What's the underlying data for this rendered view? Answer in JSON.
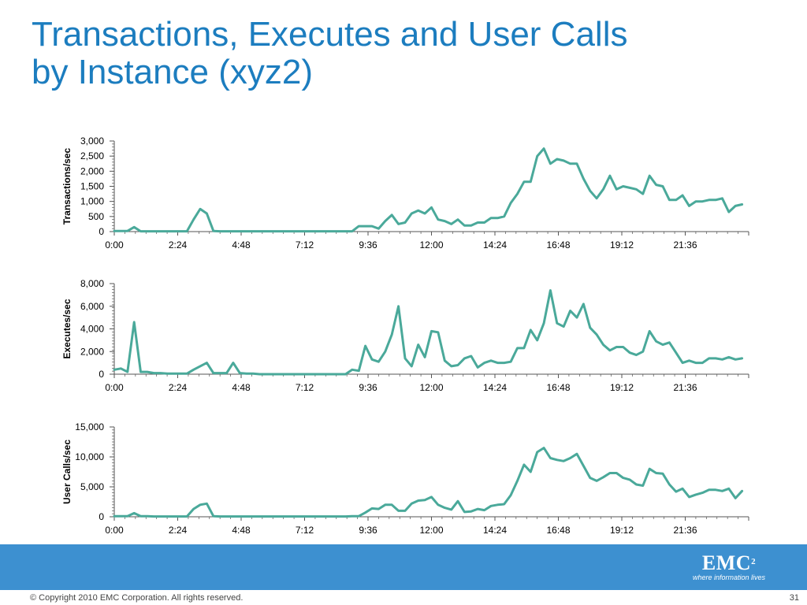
{
  "title": {
    "line1": "Transactions, Executes and User Calls",
    "line2": "by Instance (xyz2)"
  },
  "footer": {
    "copyright": "© Copyright 2010  EMC Corporation.  All rights reserved.",
    "page": "31"
  },
  "logo": {
    "name": "EMC",
    "sup": "2",
    "tagline": "where information lives"
  },
  "colors": {
    "title": "#1c7dbf",
    "line": "#4aa99a",
    "band": "#3d90d0"
  },
  "chart_data": [
    {
      "type": "line",
      "ylabel": "Transactions/sec",
      "ylim": [
        0,
        3000
      ],
      "yticks": [
        "0",
        "500",
        "1,000",
        "1,500",
        "2,000",
        "2,500",
        "3,000"
      ],
      "xticks": [
        "0:00",
        "2:24",
        "4:48",
        "7:12",
        "9:36",
        "12:00",
        "14:24",
        "16:48",
        "19:12",
        "21:36"
      ],
      "xlim": [
        0,
        24
      ],
      "legend": "none",
      "series": [
        {
          "x": [
            0,
            0.25,
            0.5,
            0.75,
            1.0,
            1.25,
            1.5,
            1.75,
            2.0,
            2.25,
            2.5,
            2.75,
            3.0,
            3.25,
            3.5,
            3.75,
            4.0,
            4.25,
            4.5,
            4.75,
            5.0,
            5.25,
            5.5,
            5.75,
            6.0,
            6.25,
            6.5,
            6.75,
            7.0,
            7.25,
            7.5,
            7.75,
            8.0,
            8.25,
            8.5,
            8.75,
            9.0,
            9.25,
            9.5,
            9.75,
            10.0,
            10.25,
            10.5,
            10.75,
            11.0,
            11.25,
            11.5,
            11.75,
            12.0,
            12.25,
            12.5,
            12.75,
            13.0,
            13.25,
            13.5,
            13.75,
            14.0,
            14.25,
            14.5,
            14.75,
            15.0,
            15.25,
            15.5,
            15.75,
            16.0,
            16.25,
            16.5,
            16.75,
            17.0,
            17.25,
            17.5,
            17.75,
            18.0,
            18.25,
            18.5,
            18.75,
            19.0,
            19.25,
            19.5,
            19.75,
            20.0,
            20.25,
            20.5,
            20.75,
            21.0,
            21.25,
            21.5,
            21.75,
            22.0,
            22.25,
            22.5,
            22.75,
            23.0,
            23.25,
            23.5,
            23.75
          ],
          "values": [
            20,
            20,
            20,
            150,
            10,
            10,
            10,
            10,
            10,
            10,
            10,
            10,
            400,
            750,
            600,
            20,
            10,
            10,
            10,
            10,
            10,
            10,
            10,
            10,
            10,
            10,
            10,
            10,
            10,
            10,
            10,
            10,
            10,
            10,
            10,
            10,
            10,
            180,
            180,
            180,
            100,
            350,
            550,
            250,
            300,
            600,
            700,
            600,
            800,
            400,
            350,
            250,
            400,
            200,
            200,
            300,
            300,
            450,
            450,
            500,
            950,
            1250,
            1650,
            1650,
            2500,
            2750,
            2250,
            2400,
            2350,
            2250,
            2250,
            1750,
            1350,
            1100,
            1400,
            1850,
            1400,
            1500,
            1450,
            1400,
            1250,
            1850,
            1550,
            1500,
            1050,
            1050,
            1200,
            850,
            1000,
            1000,
            1050,
            1050,
            1100,
            650,
            850,
            900
          ]
        }
      ]
    },
    {
      "type": "line",
      "ylabel": "Executes/sec",
      "ylim": [
        0,
        8000
      ],
      "yticks": [
        "0",
        "2,000",
        "4,000",
        "6,000",
        "8,000"
      ],
      "xticks": [
        "0:00",
        "2:24",
        "4:48",
        "7:12",
        "9:36",
        "12:00",
        "14:24",
        "16:48",
        "19:12",
        "21:36"
      ],
      "xlim": [
        0,
        24
      ],
      "legend": "none",
      "series": [
        {
          "x": [
            0,
            0.25,
            0.5,
            0.75,
            1.0,
            1.25,
            1.5,
            1.75,
            2.0,
            2.25,
            2.5,
            2.75,
            3.0,
            3.25,
            3.5,
            3.75,
            4.0,
            4.25,
            4.5,
            4.75,
            5.0,
            5.25,
            5.5,
            5.75,
            6.0,
            6.25,
            6.5,
            6.75,
            7.0,
            7.25,
            7.5,
            7.75,
            8.0,
            8.25,
            8.5,
            8.75,
            9.0,
            9.25,
            9.5,
            9.75,
            10.0,
            10.25,
            10.5,
            10.75,
            11.0,
            11.25,
            11.5,
            11.75,
            12.0,
            12.25,
            12.5,
            12.75,
            13.0,
            13.25,
            13.5,
            13.75,
            14.0,
            14.25,
            14.5,
            14.75,
            15.0,
            15.25,
            15.5,
            15.75,
            16.0,
            16.25,
            16.5,
            16.75,
            17.0,
            17.25,
            17.5,
            17.75,
            18.0,
            18.25,
            18.5,
            18.75,
            19.0,
            19.25,
            19.5,
            19.75,
            20.0,
            20.25,
            20.5,
            20.75,
            21.0,
            21.25,
            21.5,
            21.75,
            22.0,
            22.25,
            22.5,
            22.75,
            23.0,
            23.25,
            23.5,
            23.75
          ],
          "values": [
            400,
            500,
            200,
            4600,
            200,
            200,
            100,
            100,
            50,
            50,
            50,
            50,
            400,
            700,
            1000,
            100,
            100,
            100,
            1000,
            100,
            50,
            50,
            0,
            0,
            0,
            0,
            0,
            0,
            0,
            0,
            0,
            0,
            0,
            0,
            0,
            0,
            400,
            300,
            2500,
            1300,
            1100,
            2000,
            3500,
            6000,
            1400,
            700,
            2600,
            1500,
            3800,
            3700,
            1200,
            700,
            800,
            1400,
            1600,
            600,
            1000,
            1200,
            1000,
            1000,
            1100,
            2300,
            2300,
            3900,
            3000,
            4500,
            7400,
            4500,
            4200,
            5600,
            5000,
            6200,
            4100,
            3500,
            2600,
            2100,
            2400,
            2400,
            1900,
            1700,
            2000,
            3800,
            2900,
            2600,
            2800,
            1900,
            1000,
            1200,
            1000,
            1000,
            1400,
            1400,
            1300,
            1500,
            1300,
            1400
          ]
        }
      ]
    },
    {
      "type": "line",
      "ylabel": "User Calls/sec",
      "ylim": [
        0,
        15000
      ],
      "yticks": [
        "0",
        "5,000",
        "10,000",
        "15,000"
      ],
      "xticks": [
        "0:00",
        "2:24",
        "4:48",
        "7:12",
        "9:36",
        "12:00",
        "14:24",
        "16:48",
        "19:12",
        "21:36"
      ],
      "xlim": [
        0,
        24
      ],
      "legend": "none",
      "series": [
        {
          "x": [
            0,
            0.25,
            0.5,
            0.75,
            1.0,
            1.25,
            1.5,
            1.75,
            2.0,
            2.25,
            2.5,
            2.75,
            3.0,
            3.25,
            3.5,
            3.75,
            4.0,
            4.25,
            4.5,
            4.75,
            5.0,
            5.25,
            5.5,
            5.75,
            6.0,
            6.25,
            6.5,
            6.75,
            7.0,
            7.25,
            7.5,
            7.75,
            8.0,
            8.25,
            8.5,
            8.75,
            9.0,
            9.25,
            9.5,
            9.75,
            10.0,
            10.25,
            10.5,
            10.75,
            11.0,
            11.25,
            11.5,
            11.75,
            12.0,
            12.25,
            12.5,
            12.75,
            13.0,
            13.25,
            13.5,
            13.75,
            14.0,
            14.25,
            14.5,
            14.75,
            15.0,
            15.25,
            15.5,
            15.75,
            16.0,
            16.25,
            16.5,
            16.75,
            17.0,
            17.25,
            17.5,
            17.75,
            18.0,
            18.25,
            18.5,
            18.75,
            19.0,
            19.25,
            19.5,
            19.75,
            20.0,
            20.25,
            20.5,
            20.75,
            21.0,
            21.25,
            21.5,
            21.75,
            22.0,
            22.25,
            22.5,
            22.75,
            23.0,
            23.25,
            23.5,
            23.75
          ],
          "values": [
            100,
            100,
            100,
            600,
            100,
            100,
            50,
            50,
            50,
            50,
            50,
            50,
            1300,
            2000,
            2200,
            100,
            50,
            50,
            50,
            50,
            50,
            50,
            50,
            50,
            50,
            50,
            50,
            50,
            50,
            50,
            50,
            50,
            50,
            50,
            50,
            50,
            100,
            100,
            700,
            1400,
            1300,
            2000,
            2000,
            1000,
            1000,
            2200,
            2700,
            2800,
            3300,
            2000,
            1500,
            1200,
            2600,
            800,
            900,
            1300,
            1100,
            1800,
            2000,
            2100,
            3600,
            6000,
            8700,
            7500,
            10800,
            11500,
            9800,
            9500,
            9300,
            9800,
            10500,
            8500,
            6500,
            6000,
            6600,
            7300,
            7300,
            6500,
            6200,
            5400,
            5200,
            8000,
            7300,
            7200,
            5400,
            4200,
            4700,
            3300,
            3700,
            4000,
            4500,
            4500,
            4300,
            4700,
            3100,
            4300
          ]
        }
      ]
    }
  ]
}
